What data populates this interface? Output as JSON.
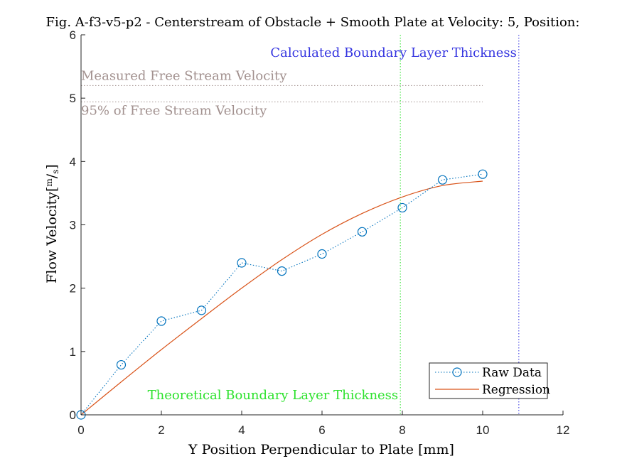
{
  "chart_data": {
    "type": "line",
    "title": "Fig. A-f3-v5-p2 - Centerstream of Obstacle + Smooth Plate at Velocity: 5, Position:",
    "xlabel": "Y Position Perpendicular to Plate [mm]",
    "ylabel": "Flow Velocity[m/s]",
    "ylabel_main": "Flow Velocity[",
    "ylabel_unit_num": "m",
    "ylabel_unit_sep": "/",
    "ylabel_unit_den": "s",
    "ylabel_close": "]",
    "xlim": [
      0,
      12
    ],
    "ylim": [
      0,
      6
    ],
    "xticks": [
      0,
      2,
      4,
      6,
      8,
      10,
      12
    ],
    "yticks": [
      0,
      1,
      2,
      3,
      4,
      5,
      6
    ],
    "xtick_labels": [
      "0",
      "2",
      "4",
      "6",
      "8",
      "10",
      "12"
    ],
    "ytick_labels": [
      "0",
      "1",
      "2",
      "3",
      "4",
      "5",
      "6"
    ],
    "grid": false,
    "legend_position": "bottom-right",
    "series": [
      {
        "name": "Raw Data",
        "style": "dotted-line-circle-markers",
        "color": "#0072BD",
        "x": [
          0,
          1,
          2,
          3,
          4,
          5,
          6,
          7,
          8,
          9,
          10
        ],
        "y": [
          0,
          0.79,
          1.48,
          1.65,
          2.4,
          2.27,
          2.54,
          2.89,
          3.27,
          3.71,
          3.8
        ]
      },
      {
        "name": "Regression",
        "style": "solid-line",
        "color": "#D95319",
        "x": [
          0,
          1,
          2,
          3,
          4,
          5,
          6,
          7,
          8,
          9,
          10
        ],
        "y": [
          0,
          0.52,
          1.03,
          1.52,
          2.0,
          2.45,
          2.85,
          3.18,
          3.44,
          3.62,
          3.69
        ]
      }
    ],
    "reference_lines": [
      {
        "orientation": "horizontal",
        "value": 5.2,
        "label": "Measured Free Stream Velocity",
        "color": "#A2918F"
      },
      {
        "orientation": "horizontal",
        "value": 4.94,
        "label": "95% of Free Stream Velocity",
        "color": "#A2918F"
      },
      {
        "orientation": "vertical",
        "value": 7.95,
        "label": "Theoretical Boundary Layer Thickness",
        "color": "#2EE22E"
      },
      {
        "orientation": "vertical",
        "value": 10.9,
        "label": "Calculated Boundary Layer Thickness",
        "color": "#3535E0"
      }
    ]
  }
}
